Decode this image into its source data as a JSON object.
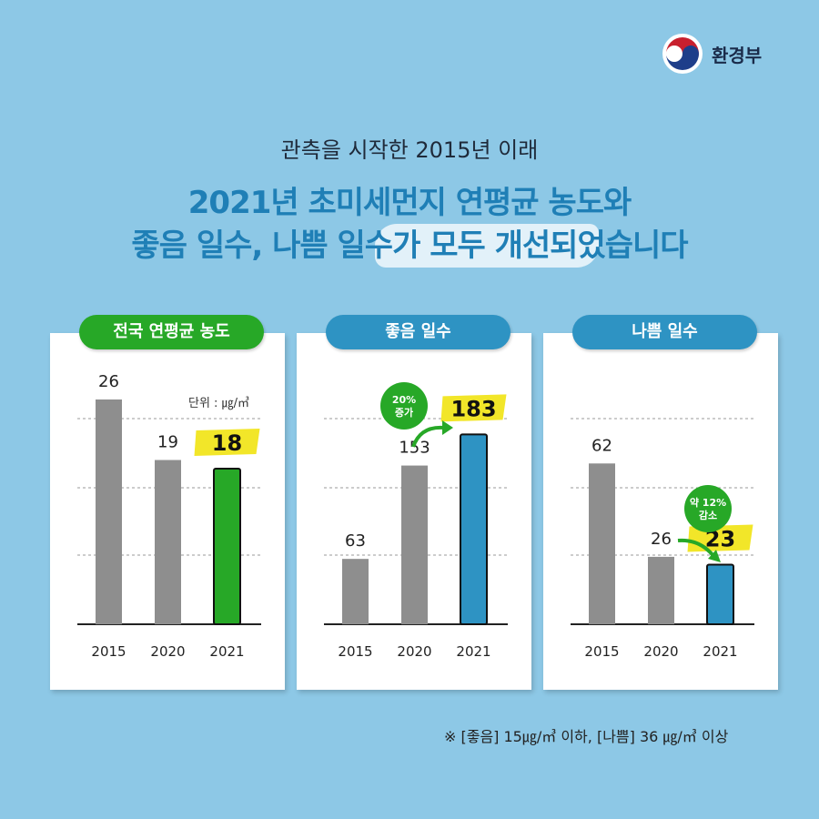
{
  "logo": {
    "text": "환경부",
    "colors": [
      "#C8202E",
      "#1E3E8A"
    ]
  },
  "subtitle": "관측을 시작한 2015년 이래",
  "title_line1": "2021년 초미세먼지 연평균 농도와",
  "title_line2": "좋음 일수, 나쁨 일수가 모두 개선되었습니다",
  "footnote": "※ [좋음] 15㎍/㎥ 이하, [나쁨] 36 ㎍/㎥ 이상",
  "colors": {
    "gray": "#8E8E8E",
    "green": "#27A827",
    "blue": "#2E93C3",
    "highlight": "#F2E629",
    "arrow": "#27A827"
  },
  "chart_data": [
    {
      "type": "bar",
      "title": "전국 연평균 농도",
      "unit": "단위 : ㎍/㎥",
      "categories": [
        "2015",
        "2020",
        "2021"
      ],
      "values": [
        26,
        19,
        18
      ],
      "highlight_last": true,
      "ylim": [
        0,
        30
      ]
    },
    {
      "type": "bar",
      "title": "좋음 일수",
      "categories": [
        "2015",
        "2020",
        "2021"
      ],
      "values": [
        63,
        153,
        183
      ],
      "highlight_last": true,
      "annotation": "20%\n증가",
      "ylim": [
        0,
        250
      ]
    },
    {
      "type": "bar",
      "title": "나쁨 일수",
      "categories": [
        "2015",
        "2020",
        "2021"
      ],
      "values": [
        62,
        26,
        23
      ],
      "highlight_last": true,
      "annotation": "약 12%\n감소",
      "ylim": [
        0,
        100
      ]
    }
  ]
}
